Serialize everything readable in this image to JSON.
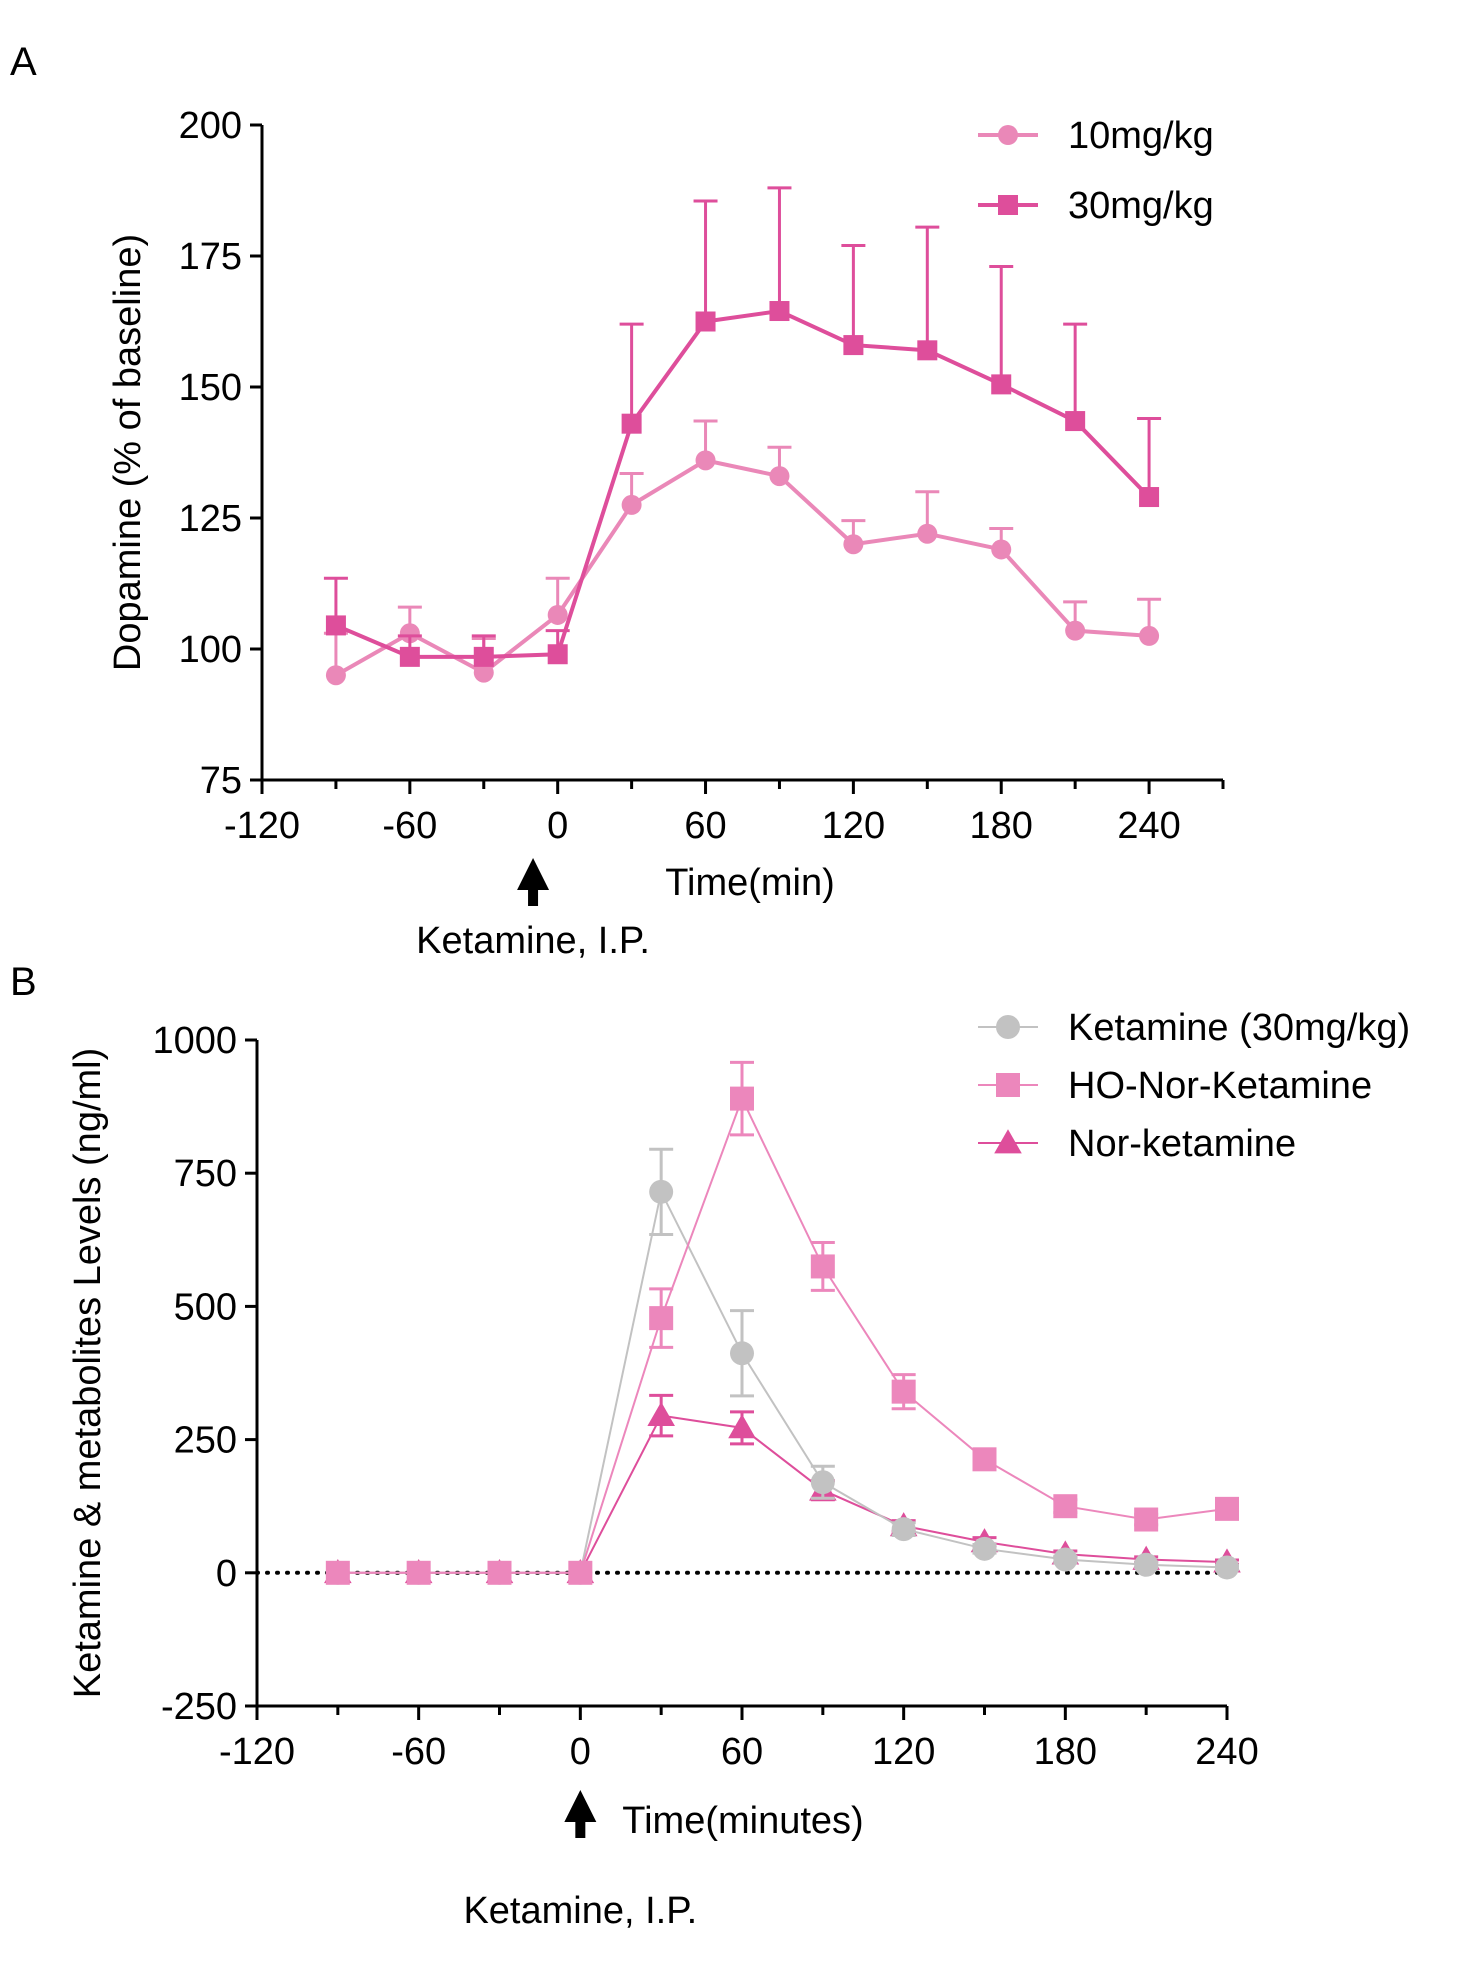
{
  "chart_data": [
    {
      "panel": "A",
      "type": "line",
      "xlabel": "Time(min)",
      "ylabel": "Dopamine (% of baseline)",
      "xlim": [
        -120,
        270
      ],
      "ylim": [
        75,
        200
      ],
      "xticks": [
        -120,
        -60,
        0,
        60,
        120,
        180,
        240
      ],
      "yticks": [
        75,
        100,
        125,
        150,
        175,
        200
      ],
      "annotation": "Ketamine, I.P.",
      "annotation_x": -10,
      "legend_position": "top-right",
      "x": [
        -90,
        -60,
        -30,
        0,
        30,
        60,
        90,
        120,
        150,
        180,
        210,
        240
      ],
      "series": [
        {
          "name": "10mg/kg",
          "marker": "circle",
          "color": "#EA88B8",
          "values": [
            95,
            103,
            95.5,
            106.5,
            127.5,
            136,
            133,
            120,
            122,
            119,
            103.5,
            102.5
          ],
          "errors": [
            8,
            5,
            6.5,
            7,
            6,
            7.5,
            5.5,
            4.5,
            8,
            4,
            5.5,
            7
          ]
        },
        {
          "name": "30mg/kg",
          "marker": "square",
          "color": "#DE4E9B",
          "values": [
            104.5,
            98.5,
            98.5,
            99,
            143,
            162.5,
            164.5,
            158,
            157,
            150.5,
            143.5,
            129
          ],
          "errors": [
            9,
            4,
            4,
            4.5,
            19,
            23,
            23.5,
            19,
            23.5,
            22.5,
            18.5,
            15
          ]
        }
      ]
    },
    {
      "panel": "B",
      "type": "line",
      "xlabel": "Time(minutes)",
      "ylabel": "Ketamine & metabolites Levels (ng/ml)",
      "xlim": [
        -120,
        240
      ],
      "ylim": [
        -250,
        1000
      ],
      "xticks": [
        -120,
        -60,
        0,
        60,
        120,
        180,
        240
      ],
      "yticks": [
        -250,
        0,
        250,
        500,
        750,
        1000
      ],
      "zero_line": "dotted",
      "annotation": "Ketamine, I.P.",
      "annotation_x": 0,
      "legend_position": "top-right",
      "x": [
        -90,
        -60,
        -30,
        0,
        30,
        60,
        90,
        120,
        150,
        180,
        210,
        240
      ],
      "series": [
        {
          "name": "Ketamine (30mg/kg)",
          "marker": "circle",
          "color": "#C2C2C2",
          "values": [
            0,
            0,
            0,
            0,
            715,
            412,
            170,
            82,
            45,
            25,
            15,
            10
          ],
          "errors": [
            0,
            0,
            0,
            0,
            80,
            80,
            30,
            12,
            8,
            6,
            5,
            4
          ]
        },
        {
          "name": "HO-Nor-Ketamine",
          "marker": "square",
          "color": "#EC87BC",
          "values": [
            0,
            0,
            0,
            0,
            478,
            890,
            575,
            340,
            213,
            125,
            100,
            120
          ],
          "errors": [
            0,
            0,
            0,
            0,
            55,
            68,
            45,
            32,
            15,
            12,
            10,
            12
          ]
        },
        {
          "name": "Nor-ketamine",
          "marker": "triangle",
          "color": "#DE4E9B",
          "values": [
            0,
            0,
            0,
            0,
            295,
            272,
            155,
            88,
            58,
            35,
            25,
            20
          ],
          "errors": [
            0,
            0,
            0,
            0,
            38,
            30,
            18,
            10,
            8,
            6,
            5,
            4
          ]
        }
      ]
    }
  ],
  "panel_labels": [
    "A",
    "B"
  ]
}
